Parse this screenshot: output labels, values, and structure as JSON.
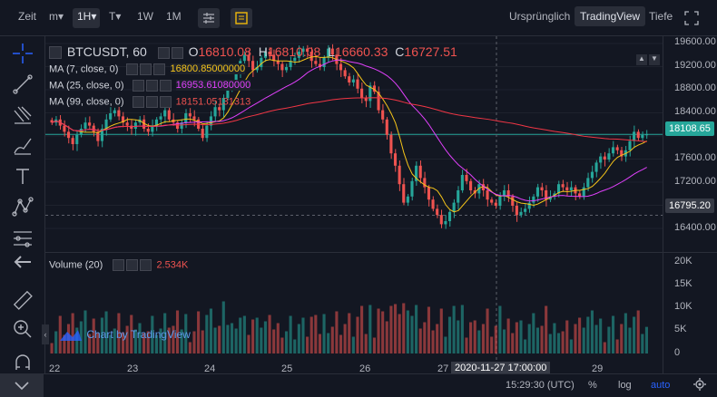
{
  "toolbar": {
    "time_label": "Zeit",
    "interval_m": "m▾",
    "interval_1h": "1H▾",
    "interval_t": "T▾",
    "interval_1w": "1W",
    "interval_1m": "1M",
    "view_original": "Ursprünglich",
    "view_tradingview": "TradingView",
    "view_depth": "Tiefe"
  },
  "symbol": {
    "name": "BTCUSDT, 60",
    "o_label": "O",
    "o_value": "16810.08",
    "h_label": "H",
    "h_value": "16810.08",
    "l_label": "L",
    "l_value": "16660.33",
    "c_label": "C",
    "c_value": "16727.51"
  },
  "indicators": {
    "ma7_label": "MA (7, close, 0)",
    "ma7_value": "16800.85000000",
    "ma7_color": "#f5c419",
    "ma25_label": "MA (25, close, 0)",
    "ma25_value": "16953.61080000",
    "ma25_color": "#e040fb",
    "ma99_label": "MA (99, close, 0)",
    "ma99_value": "18151.05131313",
    "ma99_color": "#f23645",
    "volume_label": "Volume (20)",
    "volume_value": "2.534K"
  },
  "price_axis": {
    "ticks": [
      "19600.00",
      "19200.00",
      "18800.00",
      "18400.00",
      "18000.00",
      "17600.00",
      "17200.00",
      "16400.00"
    ],
    "last_price": "18108.65",
    "crosshair_price": "16795.20"
  },
  "volume_axis": {
    "ticks": [
      "20K",
      "15K",
      "10K",
      "5K",
      "0"
    ]
  },
  "time_axis": {
    "ticks": [
      "22",
      "23",
      "24",
      "25",
      "26",
      "27",
      "29"
    ],
    "crosshair_time": "2020-11-27 17:00:00"
  },
  "watermark": "Chart by TradingView",
  "footer": {
    "clock": "15:29:30 (UTC)",
    "percent": "%",
    "log": "log",
    "auto": "auto"
  },
  "colors": {
    "up": "#26a69a",
    "down": "#ef5350",
    "accent": "#2962ff",
    "price_tag": "#26a69a"
  },
  "chart_data": {
    "type": "candlestick",
    "symbol": "BTCUSDT",
    "interval": "60",
    "ylim": [
      16200,
      19700
    ],
    "x_ticks": [
      "22",
      "23",
      "24",
      "25",
      "26",
      "27",
      "29"
    ],
    "close": [
      18300,
      18350,
      18250,
      18150,
      18050,
      17950,
      18100,
      18200,
      18300,
      18250,
      18150,
      18000,
      18200,
      18350,
      18450,
      18500,
      18400,
      18300,
      18250,
      18200,
      18300,
      18350,
      18200,
      18150,
      18250,
      18350,
      18400,
      18500,
      18350,
      18300,
      18200,
      18300,
      18450,
      18400,
      18350,
      18200,
      18050,
      18250,
      18400,
      18550,
      18500,
      18700,
      18850,
      18900,
      19100,
      19300,
      19400,
      19300,
      19150,
      19200,
      19350,
      19450,
      19400,
      19300,
      19250,
      19150,
      19200,
      19300,
      19350,
      19450,
      19500,
      19450,
      19300,
      19250,
      19200,
      19350,
      19500,
      19400,
      19250,
      19150,
      19050,
      18950,
      19000,
      18850,
      18700,
      18650,
      18900,
      18800,
      18500,
      18350,
      18100,
      17800,
      17600,
      17300,
      17000,
      17100,
      17350,
      17600,
      17400,
      17250,
      17050,
      16900,
      16800,
      16650,
      16700,
      16850,
      17000,
      17200,
      17450,
      17350,
      17200,
      17150,
      17300,
      17200,
      17050,
      17000,
      16950,
      17100,
      17200,
      17100,
      16950,
      16800,
      16850,
      16900,
      17000,
      17100,
      17250,
      17200,
      17050,
      17100,
      17150,
      17300,
      17250,
      17200,
      17250,
      17150,
      17100,
      17250,
      17400,
      17500,
      17650,
      17750,
      17700,
      17800,
      17900,
      17850,
      17750,
      17850,
      18000,
      18150,
      18050,
      18100,
      18108.65
    ],
    "ma7_last": 16800.85,
    "ma25_last": 16953.6108,
    "ma99_last": 18151.05131313,
    "volume_ylim": [
      0,
      22000
    ]
  }
}
